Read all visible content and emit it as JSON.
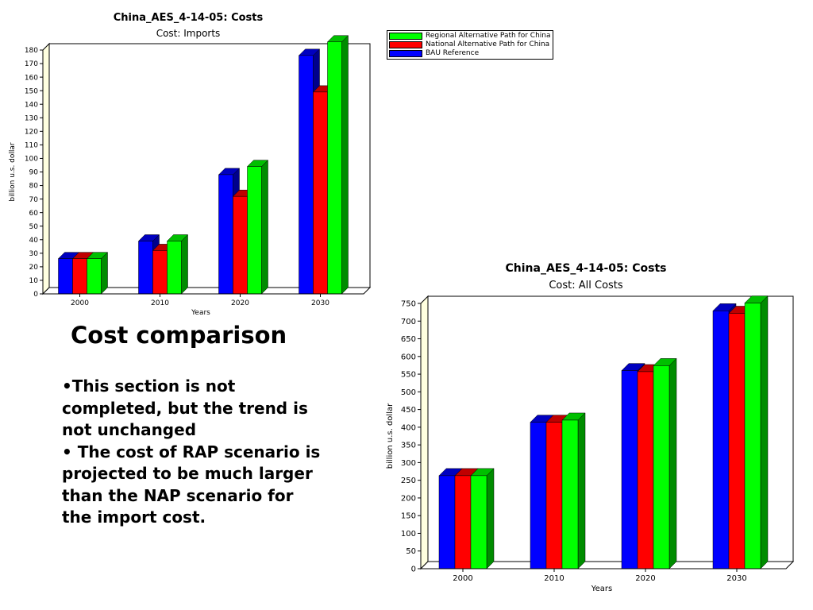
{
  "colors": {
    "bau": "#0000ff",
    "nap": "#ff0000",
    "rap": "#00ff00",
    "wall": "#ffffe0"
  },
  "legend": {
    "items": [
      {
        "label": "Regional Alternative Path for China",
        "color": "#00ff00"
      },
      {
        "label": "National Alternative Path for China",
        "color": "#ff0000"
      },
      {
        "label": "BAU Reference",
        "color": "#0000ff"
      }
    ]
  },
  "text": {
    "heading": "Cost comparison",
    "bullets": [
      "•This section is not completed, but the trend is not unchanged",
      "• The cost of RAP scenario is projected to be much larger than the NAP scenario for the import cost."
    ]
  },
  "chart_data": [
    {
      "type": "bar",
      "title": "China_AES_4-14-05: Costs",
      "subtitle": "Cost: Imports",
      "xlabel": "Years",
      "ylabel": "billion u.s. dollar",
      "categories": [
        "2000",
        "2010",
        "2020",
        "2030"
      ],
      "ylim": [
        0,
        180
      ],
      "yticks": [
        0,
        10,
        20,
        30,
        40,
        50,
        60,
        70,
        80,
        90,
        100,
        110,
        120,
        130,
        140,
        150,
        160,
        170,
        180
      ],
      "series": [
        {
          "name": "BAU Reference",
          "color": "#0000ff",
          "values": [
            26,
            39,
            88,
            176
          ]
        },
        {
          "name": "National Alternative Path for China",
          "color": "#ff0000",
          "values": [
            26,
            32,
            72,
            149
          ]
        },
        {
          "name": "Regional Alternative Path for China",
          "color": "#00ff00",
          "values": [
            26,
            39,
            94,
            186
          ]
        }
      ]
    },
    {
      "type": "bar",
      "title": "China_AES_4-14-05: Costs",
      "subtitle": "Cost: All Costs",
      "xlabel": "Years",
      "ylabel": "billion u.s. dollar",
      "categories": [
        "2000",
        "2010",
        "2020",
        "2030"
      ],
      "ylim": [
        0,
        750
      ],
      "yticks": [
        0,
        50,
        100,
        150,
        200,
        250,
        300,
        350,
        400,
        450,
        500,
        550,
        600,
        650,
        700,
        750
      ],
      "series": [
        {
          "name": "BAU Reference",
          "color": "#0000ff",
          "values": [
            263,
            414,
            560,
            729
          ]
        },
        {
          "name": "National Alternative Path for China",
          "color": "#ff0000",
          "values": [
            263,
            414,
            557,
            722
          ]
        },
        {
          "name": "Regional Alternative Path for China",
          "color": "#00ff00",
          "values": [
            263,
            420,
            574,
            751
          ]
        }
      ]
    }
  ]
}
